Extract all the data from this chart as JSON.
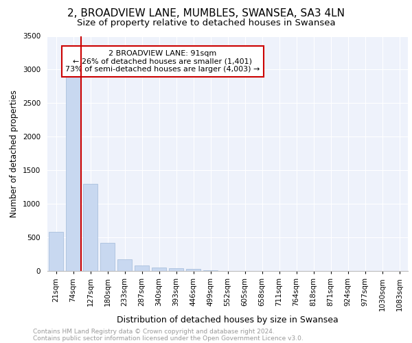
{
  "title1": "2, BROADVIEW LANE, MUMBLES, SWANSEA, SA3 4LN",
  "title2": "Size of property relative to detached houses in Swansea",
  "xlabel": "Distribution of detached houses by size in Swansea",
  "ylabel": "Number of detached properties",
  "footer1": "Contains HM Land Registry data © Crown copyright and database right 2024.",
  "footer2": "Contains public sector information licensed under the Open Government Licence v3.0.",
  "categories": [
    "21sqm",
    "74sqm",
    "127sqm",
    "180sqm",
    "233sqm",
    "287sqm",
    "340sqm",
    "393sqm",
    "446sqm",
    "499sqm",
    "552sqm",
    "605sqm",
    "658sqm",
    "711sqm",
    "764sqm",
    "818sqm",
    "871sqm",
    "924sqm",
    "977sqm",
    "1030sqm",
    "1083sqm"
  ],
  "values": [
    580,
    2900,
    1300,
    420,
    170,
    80,
    55,
    45,
    35,
    15,
    0,
    0,
    0,
    0,
    0,
    0,
    0,
    0,
    0,
    0,
    0
  ],
  "bar_color": "#c8d8f0",
  "bar_edge_color": "#a0b8d8",
  "red_line_x": 1.45,
  "annotation_line1": "2 BROADVIEW LANE: 91sqm",
  "annotation_line2": "← 26% of detached houses are smaller (1,401)",
  "annotation_line3": "73% of semi-detached houses are larger (4,003) →",
  "annotation_box_color": "#ffffff",
  "annotation_box_edge_color": "#cc0000",
  "red_line_color": "#cc0000",
  "background_color": "#eef2fb",
  "grid_color": "#ffffff",
  "ylim": [
    0,
    3500
  ],
  "yticks": [
    0,
    500,
    1000,
    1500,
    2000,
    2500,
    3000,
    3500
  ],
  "title1_fontsize": 11,
  "title2_fontsize": 9.5,
  "xlabel_fontsize": 9,
  "ylabel_fontsize": 8.5,
  "tick_fontsize": 7.5,
  "annotation_fontsize": 8,
  "footer_fontsize": 6.5,
  "footer_color": "#999999"
}
